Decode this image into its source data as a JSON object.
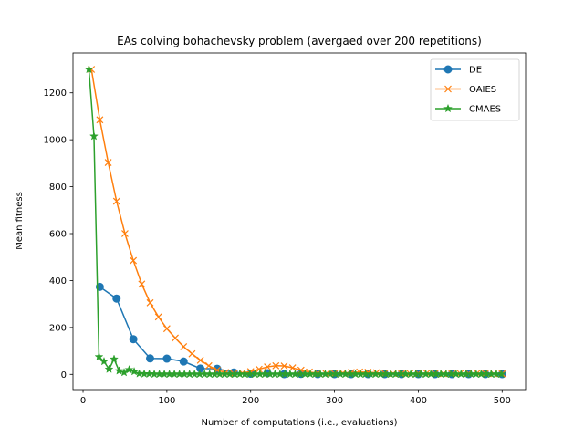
{
  "chart_data": {
    "type": "line",
    "title": "EAs colving bohachevsky problem (avergaed over 200 repetitions)",
    "xlabel": "Number of computations (i.e., evaluations)",
    "ylabel": "Mean fitness",
    "xlim": [
      -12,
      528
    ],
    "ylim": [
      -65,
      1370
    ],
    "xticks": [
      0,
      100,
      200,
      300,
      400,
      500
    ],
    "yticks": [
      0,
      200,
      400,
      600,
      800,
      1000,
      1200
    ],
    "legend_position": "top-right",
    "series": [
      {
        "name": "DE",
        "color": "#1f77b4",
        "marker": "circle",
        "x": [
          20,
          40,
          60,
          80,
          100,
          120,
          140,
          160,
          180,
          200,
          220,
          240,
          260,
          280,
          300,
          320,
          340,
          360,
          380,
          400,
          420,
          440,
          460,
          480,
          500
        ],
        "y": [
          373,
          323,
          150,
          68,
          67,
          55,
          25,
          24,
          8,
          3,
          5,
          1,
          2,
          1,
          1,
          1,
          1,
          1,
          1,
          1,
          1,
          1,
          1,
          1,
          1
        ]
      },
      {
        "name": "OAIES",
        "color": "#ff7f0e",
        "marker": "x",
        "x": [
          10,
          20,
          30,
          40,
          50,
          60,
          70,
          80,
          90,
          100,
          110,
          120,
          130,
          140,
          150,
          160,
          170,
          180,
          190,
          200,
          210,
          220,
          230,
          240,
          250,
          260,
          270,
          280,
          290,
          300,
          310,
          320,
          330,
          340,
          350,
          360,
          370,
          380,
          390,
          400,
          410,
          420,
          430,
          440,
          450,
          460,
          470,
          480,
          490,
          500
        ],
        "y": [
          1300,
          1085,
          903,
          738,
          600,
          485,
          385,
          305,
          245,
          195,
          155,
          118,
          88,
          60,
          37,
          18,
          8,
          3,
          6,
          12,
          22,
          32,
          37,
          36,
          28,
          18,
          10,
          5,
          3,
          4,
          6,
          8,
          10,
          9,
          7,
          5,
          4,
          3,
          4,
          5,
          5,
          4,
          3,
          3,
          4,
          5,
          5,
          4,
          3,
          3
        ]
      },
      {
        "name": "CMAES",
        "color": "#2ca02c",
        "marker": "star",
        "x": [
          7,
          13,
          19,
          25,
          31,
          37,
          43,
          49,
          55,
          61,
          67,
          73,
          79,
          85,
          91,
          97,
          103,
          109,
          115,
          121,
          127,
          133,
          139,
          145,
          151,
          157,
          163,
          169,
          175,
          181,
          187,
          193,
          199,
          205,
          211,
          217,
          223,
          229,
          235,
          241,
          247,
          253,
          259,
          265,
          271,
          277,
          283,
          289,
          295,
          301,
          307,
          313,
          319,
          325,
          331,
          337,
          343,
          349,
          355,
          361,
          367,
          373,
          379,
          385,
          391,
          397,
          403,
          409,
          415,
          421,
          427,
          433,
          439,
          445,
          451,
          457,
          463,
          469,
          475,
          481,
          487,
          493,
          499
        ],
        "y": [
          1300,
          1015,
          75,
          55,
          22,
          65,
          15,
          8,
          20,
          12,
          3,
          2,
          2,
          1,
          1,
          1,
          1,
          1,
          1,
          1,
          1,
          1,
          1,
          1,
          1,
          1,
          1,
          1,
          1,
          1,
          1,
          1,
          1,
          1,
          1,
          1,
          1,
          1,
          1,
          1,
          1,
          1,
          1,
          1,
          1,
          1,
          1,
          1,
          1,
          1,
          1,
          1,
          1,
          1,
          1,
          1,
          1,
          1,
          1,
          1,
          1,
          1,
          1,
          1,
          1,
          1,
          1,
          1,
          1,
          1,
          1,
          1,
          1,
          1,
          1,
          1,
          1,
          1,
          1,
          1,
          1,
          1,
          1
        ]
      }
    ]
  }
}
